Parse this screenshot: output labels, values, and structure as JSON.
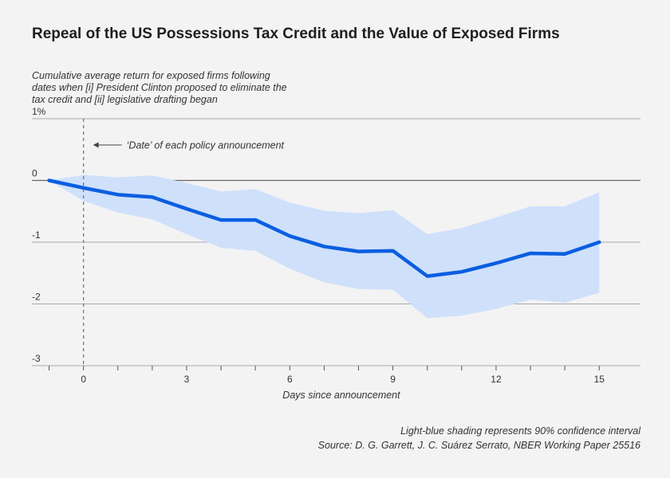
{
  "chart_data": {
    "type": "area",
    "title": "Repeal of the US Possessions Tax Credit and the Value of Exposed Firms",
    "ylabel": "Cumulative average return for exposed firms following dates when [i] President Clinton proposed to eliminate the tax credit and [ii] legislative drafting began",
    "xlabel": "Days since announcement",
    "x_ticks": [
      0,
      3,
      6,
      9,
      12,
      15
    ],
    "y_ticks": [
      {
        "value": 1,
        "label": "1%"
      },
      {
        "value": 0,
        "label": "0"
      },
      {
        "value": -1,
        "label": "-1"
      },
      {
        "value": -2,
        "label": "-2"
      },
      {
        "value": -3,
        "label": "-3"
      }
    ],
    "xlim": [
      -1.5,
      16.2
    ],
    "ylim": [
      -3,
      1
    ],
    "grid": true,
    "x": [
      -1,
      0,
      1,
      2,
      3,
      4,
      5,
      6,
      7,
      8,
      9,
      10,
      11,
      12,
      13,
      14,
      15
    ],
    "series": [
      {
        "values": [
          0,
          -0.12,
          -0.23,
          -0.27,
          -0.46,
          -0.64,
          -0.64,
          -0.9,
          -1.07,
          -1.15,
          -1.14,
          -1.55,
          -1.48,
          -1.34,
          -1.18,
          -1.19,
          -1.0
        ]
      }
    ],
    "band_upper": [
      0,
      0.09,
      0.05,
      0.08,
      -0.04,
      -0.18,
      -0.14,
      -0.36,
      -0.49,
      -0.53,
      -0.48,
      -0.87,
      -0.77,
      -0.6,
      -0.42,
      -0.42,
      -0.19
    ],
    "band_lower": [
      0,
      -0.33,
      -0.52,
      -0.63,
      -0.87,
      -1.09,
      -1.14,
      -1.43,
      -1.65,
      -1.76,
      -1.77,
      -2.23,
      -2.19,
      -2.08,
      -1.93,
      -1.98,
      -1.82
    ],
    "announcement_x": 0,
    "annotation": "‘Date’ of each policy announcement",
    "colors": {
      "line": "#0a5ee0",
      "band": "#cfe0fb",
      "grid": "#a8a8a8",
      "zero": "#666666",
      "dashed": "#777777"
    }
  },
  "footer": {
    "note": "Light-blue shading represents 90% confidence interval",
    "source": "Source: D. G. Garrett, J. C. Suárez Serrato, NBER Working Paper 25516"
  }
}
